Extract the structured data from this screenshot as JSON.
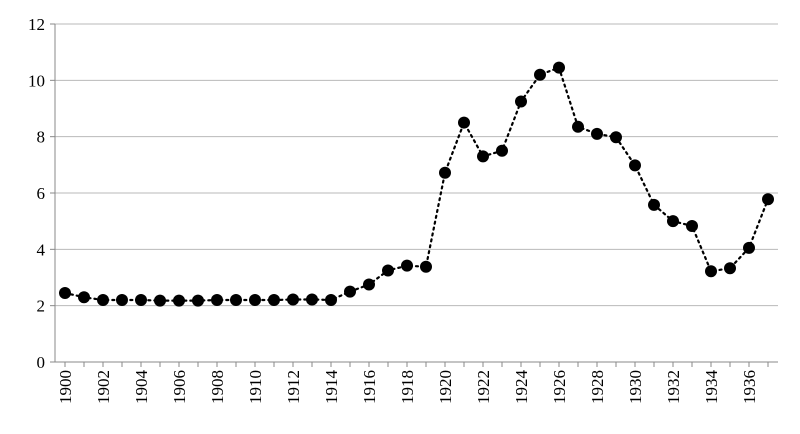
{
  "chart_data": {
    "type": "line",
    "title": "",
    "xlabel": "",
    "ylabel": "",
    "ylim": [
      0,
      12
    ],
    "yticks": [
      0,
      2,
      4,
      6,
      8,
      10,
      12
    ],
    "xlim": [
      1900,
      1937
    ],
    "xticks": [
      1900,
      1902,
      1904,
      1906,
      1908,
      1910,
      1912,
      1914,
      1916,
      1918,
      1920,
      1922,
      1924,
      1926,
      1928,
      1930,
      1932,
      1934,
      1936
    ],
    "grid": true,
    "legend": "none",
    "colors": {
      "series": "#000000",
      "grid": "#b9b9b9",
      "axis": "#888888"
    },
    "series": [
      {
        "marker": "circle",
        "line_style": "dotted",
        "x": [
          1900,
          1901,
          1902,
          1903,
          1904,
          1905,
          1906,
          1907,
          1908,
          1909,
          1910,
          1911,
          1912,
          1913,
          1914,
          1915,
          1916,
          1917,
          1918,
          1919,
          1920,
          1921,
          1922,
          1923,
          1924,
          1925,
          1926,
          1927,
          1928,
          1929,
          1930,
          1931,
          1932,
          1933,
          1934,
          1935,
          1936,
          1937
        ],
        "y": [
          2.45,
          2.3,
          2.2,
          2.2,
          2.2,
          2.18,
          2.18,
          2.18,
          2.2,
          2.2,
          2.2,
          2.2,
          2.22,
          2.22,
          2.2,
          2.5,
          2.75,
          3.25,
          3.42,
          3.38,
          6.72,
          8.5,
          7.3,
          7.5,
          9.25,
          10.2,
          10.45,
          8.35,
          8.1,
          7.98,
          6.98,
          5.58,
          5.0,
          4.83,
          3.22,
          3.33,
          4.05,
          5.78
        ]
      }
    ]
  }
}
